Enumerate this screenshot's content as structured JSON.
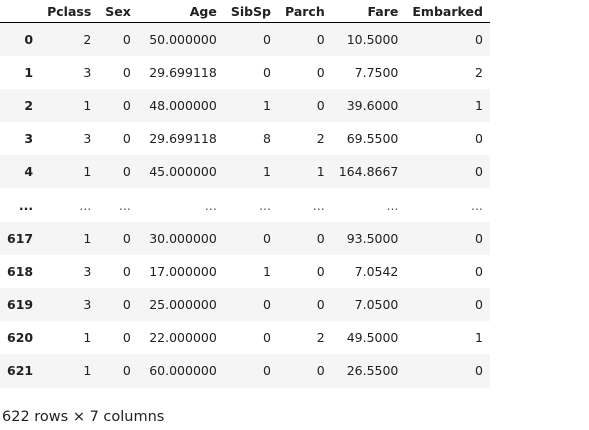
{
  "dataframe": {
    "index_header": "",
    "columns": [
      "Pclass",
      "Sex",
      "Age",
      "SibSp",
      "Parch",
      "Fare",
      "Embarked"
    ],
    "rows": [
      {
        "index": "0",
        "cells": [
          "2",
          "0",
          "50.000000",
          "0",
          "0",
          "10.5000",
          "0"
        ]
      },
      {
        "index": "1",
        "cells": [
          "3",
          "0",
          "29.699118",
          "0",
          "0",
          "7.7500",
          "2"
        ]
      },
      {
        "index": "2",
        "cells": [
          "1",
          "0",
          "48.000000",
          "1",
          "0",
          "39.6000",
          "1"
        ]
      },
      {
        "index": "3",
        "cells": [
          "3",
          "0",
          "29.699118",
          "8",
          "2",
          "69.5500",
          "0"
        ]
      },
      {
        "index": "4",
        "cells": [
          "1",
          "0",
          "45.000000",
          "1",
          "1",
          "164.8667",
          "0"
        ]
      },
      {
        "index": "...",
        "cells": [
          "...",
          "...",
          "...",
          "...",
          "...",
          "...",
          "..."
        ]
      },
      {
        "index": "617",
        "cells": [
          "1",
          "0",
          "30.000000",
          "0",
          "0",
          "93.5000",
          "0"
        ]
      },
      {
        "index": "618",
        "cells": [
          "3",
          "0",
          "17.000000",
          "1",
          "0",
          "7.0542",
          "0"
        ]
      },
      {
        "index": "619",
        "cells": [
          "3",
          "0",
          "25.000000",
          "0",
          "0",
          "7.0500",
          "0"
        ]
      },
      {
        "index": "620",
        "cells": [
          "1",
          "0",
          "22.000000",
          "0",
          "2",
          "49.5000",
          "1"
        ]
      },
      {
        "index": "621",
        "cells": [
          "1",
          "0",
          "60.000000",
          "0",
          "0",
          "26.5500",
          "0"
        ]
      }
    ],
    "shape_caption": "622 rows × 7 columns"
  }
}
